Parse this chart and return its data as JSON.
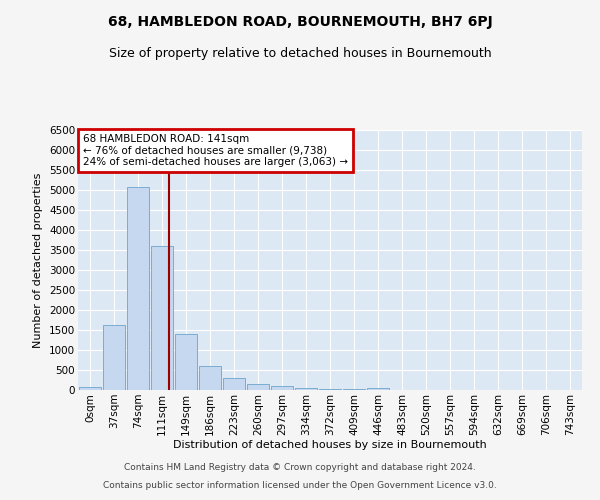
{
  "title": "68, HAMBLEDON ROAD, BOURNEMOUTH, BH7 6PJ",
  "subtitle": "Size of property relative to detached houses in Bournemouth",
  "xlabel": "Distribution of detached houses by size in Bournemouth",
  "ylabel": "Number of detached properties",
  "bar_labels": [
    "0sqm",
    "37sqm",
    "74sqm",
    "111sqm",
    "149sqm",
    "186sqm",
    "223sqm",
    "260sqm",
    "297sqm",
    "334sqm",
    "372sqm",
    "409sqm",
    "446sqm",
    "483sqm",
    "520sqm",
    "557sqm",
    "594sqm",
    "632sqm",
    "669sqm",
    "706sqm",
    "743sqm"
  ],
  "bar_values": [
    75,
    1625,
    5075,
    3600,
    1400,
    600,
    310,
    155,
    90,
    55,
    30,
    20,
    55,
    5,
    5,
    3,
    2,
    1,
    1,
    1,
    1
  ],
  "bar_color": "#c5d8f0",
  "bar_edge_color": "#7aadd4",
  "bg_color": "#dde8f5",
  "grid_color": "#ffffff",
  "vline_color": "#9b0000",
  "annotation_text": "68 HAMBLEDON ROAD: 141sqm\n← 76% of detached houses are smaller (9,738)\n24% of semi-detached houses are larger (3,063) →",
  "annotation_box_color": "#ffffff",
  "annotation_box_edge": "#cc0000",
  "ylim": [
    0,
    6500
  ],
  "yticks": [
    0,
    500,
    1000,
    1500,
    2000,
    2500,
    3000,
    3500,
    4000,
    4500,
    5000,
    5500,
    6000,
    6500
  ],
  "title_fontsize": 10,
  "subtitle_fontsize": 9,
  "axis_label_fontsize": 8,
  "tick_fontsize": 7.5,
  "footer_line1": "Contains HM Land Registry data © Crown copyright and database right 2024.",
  "footer_line2": "Contains public sector information licensed under the Open Government Licence v3.0.",
  "footer_fontsize": 6.5,
  "fig_facecolor": "#f5f5f5"
}
